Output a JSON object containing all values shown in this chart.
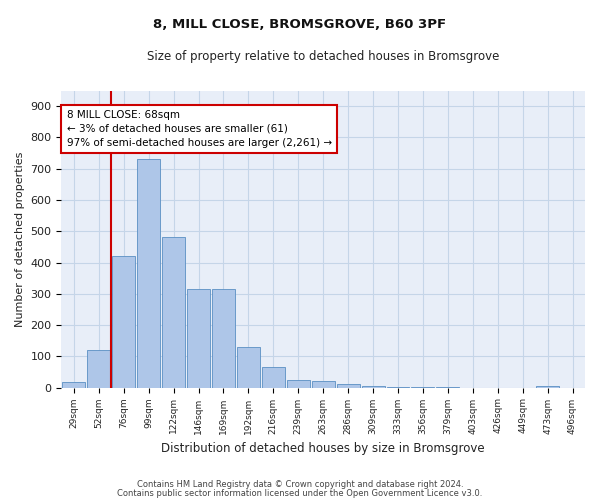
{
  "title1": "8, MILL CLOSE, BROMSGROVE, B60 3PF",
  "title2": "Size of property relative to detached houses in Bromsgrove",
  "xlabel": "Distribution of detached houses by size in Bromsgrove",
  "ylabel": "Number of detached properties",
  "categories": [
    "29sqm",
    "52sqm",
    "76sqm",
    "99sqm",
    "122sqm",
    "146sqm",
    "169sqm",
    "192sqm",
    "216sqm",
    "239sqm",
    "263sqm",
    "286sqm",
    "309sqm",
    "333sqm",
    "356sqm",
    "379sqm",
    "403sqm",
    "426sqm",
    "449sqm",
    "473sqm",
    "496sqm"
  ],
  "values": [
    18,
    120,
    420,
    730,
    480,
    315,
    315,
    130,
    65,
    25,
    20,
    10,
    5,
    2,
    2,
    1,
    0,
    0,
    0,
    5,
    0
  ],
  "bar_color": "#aec6e8",
  "bar_edge_color": "#5a8fc3",
  "vline_color": "#cc0000",
  "annotation_text": "8 MILL CLOSE: 68sqm\n← 3% of detached houses are smaller (61)\n97% of semi-detached houses are larger (2,261) →",
  "annotation_box_color": "#ffffff",
  "annotation_box_edge": "#cc0000",
  "grid_color": "#c5d5e8",
  "background_color": "#e8eef8",
  "footer1": "Contains HM Land Registry data © Crown copyright and database right 2024.",
  "footer2": "Contains public sector information licensed under the Open Government Licence v3.0.",
  "ylim": [
    0,
    950
  ],
  "yticks": [
    0,
    100,
    200,
    300,
    400,
    500,
    600,
    700,
    800,
    900
  ]
}
